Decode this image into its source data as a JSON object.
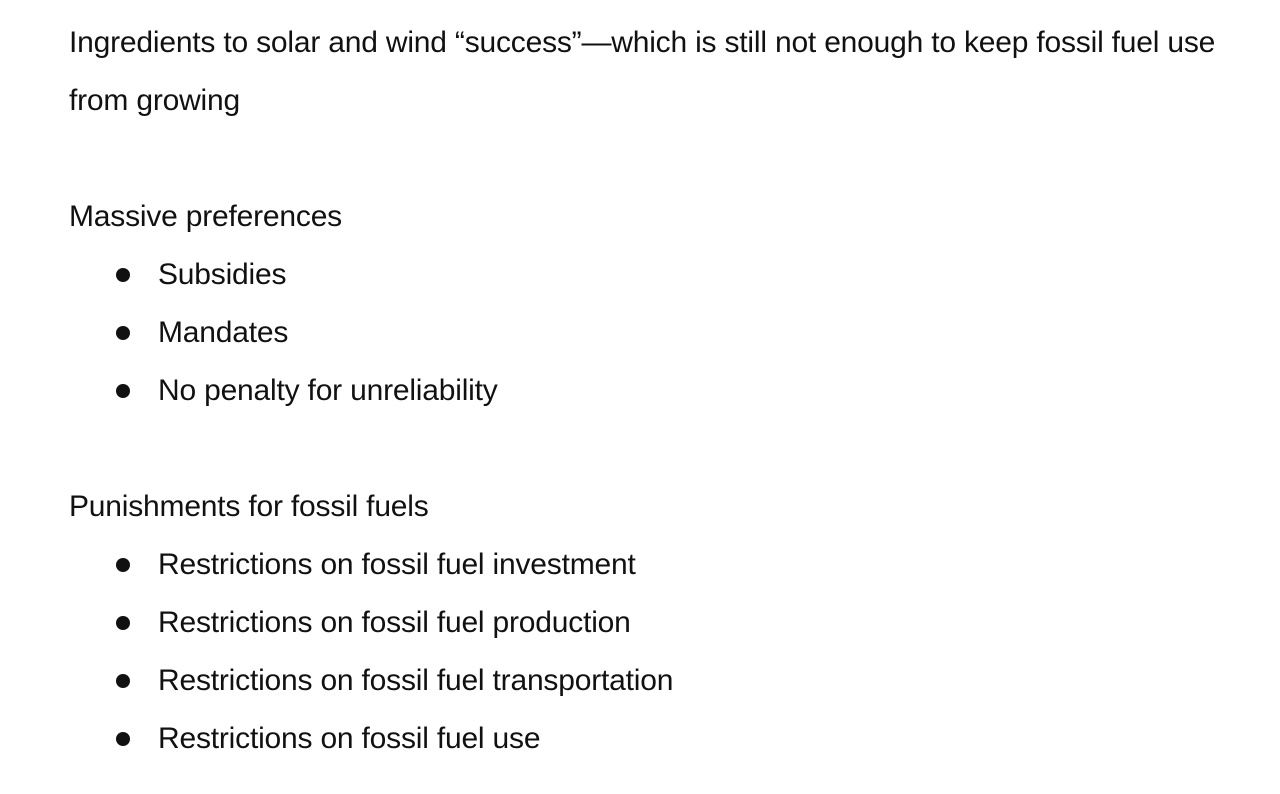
{
  "intro": {
    "text": "Ingredients to solar and wind “success”—which is still not enough to keep fossil fuel use from growing"
  },
  "sections": [
    {
      "heading": "Massive preferences",
      "items": [
        "Subsidies",
        "Mandates",
        "No penalty for unreliability"
      ]
    },
    {
      "heading": "Punishments for fossil fuels",
      "items": [
        "Restrictions on fossil fuel investment",
        "Restrictions on fossil fuel production",
        "Restrictions on fossil fuel transportation",
        "Restrictions on fossil fuel use"
      ]
    }
  ],
  "colors": {
    "text": "#111111",
    "background": "#ffffff"
  }
}
